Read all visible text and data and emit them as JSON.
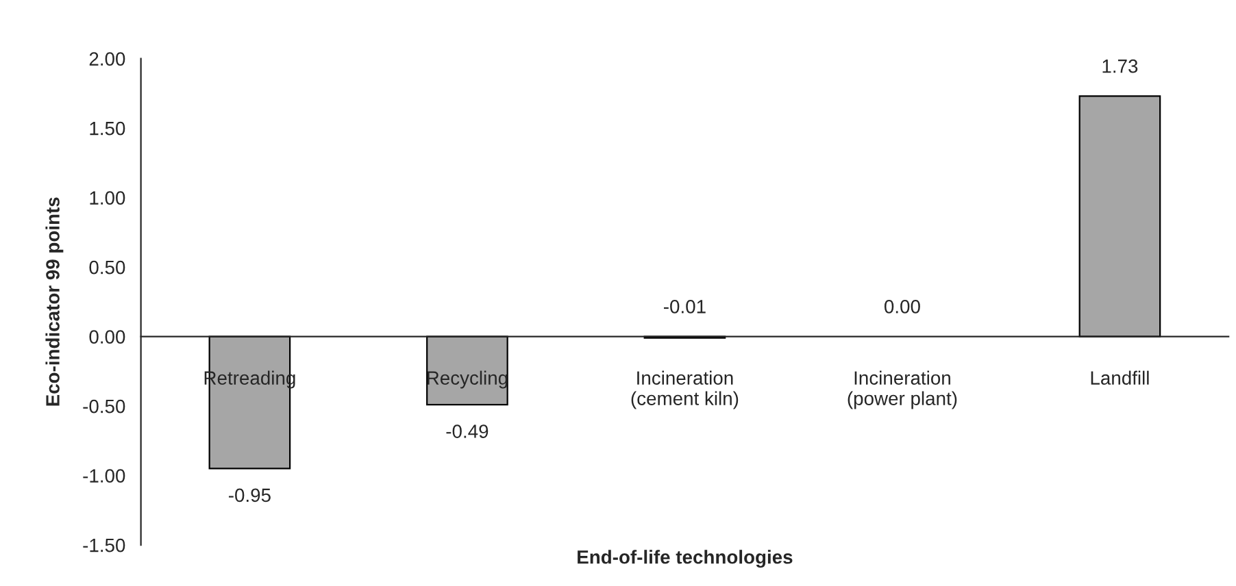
{
  "chart_data": {
    "type": "bar",
    "xlabel": "End-of-life technologies",
    "ylabel": "Eco-indicator 99 points",
    "categories": [
      "Retreading",
      "Recycling",
      "Incineration\n(cement kiln)",
      "Incineration\n(power plant)",
      "Landfill"
    ],
    "values": [
      -0.95,
      -0.49,
      -0.01,
      0.0,
      1.73
    ],
    "value_labels": [
      "-0.95",
      "-0.49",
      "-0.01",
      "0.00",
      "1.73"
    ],
    "color": "#a6a6a6",
    "ylim": [
      -1.5,
      2.0
    ],
    "yticks": [
      {
        "value": -1.5,
        "label": "-1.50"
      },
      {
        "value": -1.0,
        "label": "-1.00"
      },
      {
        "value": -0.5,
        "label": "-0.50"
      },
      {
        "value": 0.0,
        "label": "0.00"
      },
      {
        "value": 0.5,
        "label": "0.50"
      },
      {
        "value": 1.0,
        "label": "1.00"
      },
      {
        "value": 1.5,
        "label": "1.50"
      },
      {
        "value": 2.0,
        "label": "2.00"
      }
    ],
    "legend": false
  }
}
